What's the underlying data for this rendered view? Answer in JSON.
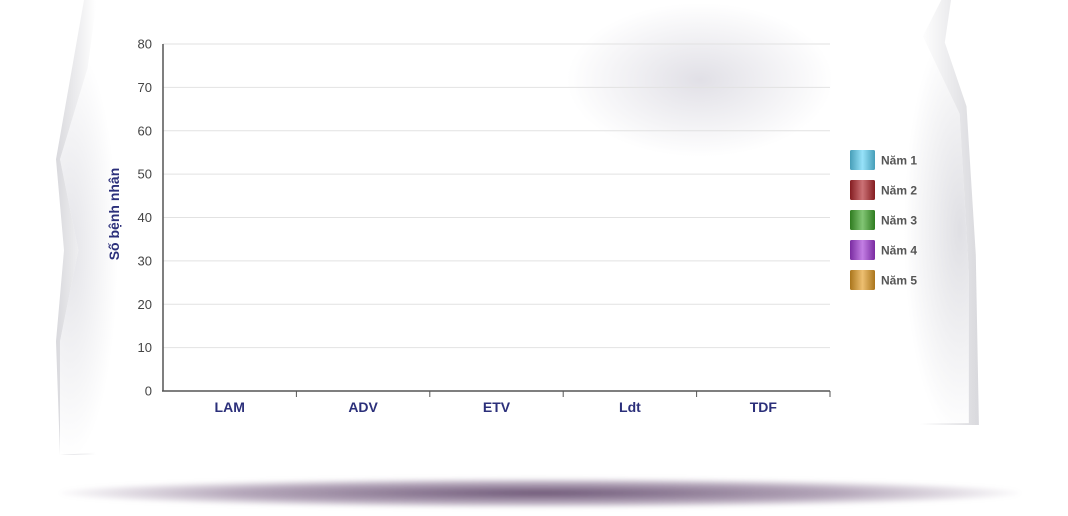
{
  "chart_data": {
    "type": "bar",
    "ylabel": "Số bệnh nhân",
    "xlabel": "",
    "ylim": [
      0,
      80
    ],
    "yticks": [
      "0",
      "10",
      "20",
      "30",
      "40",
      "50",
      "60",
      "70",
      "80"
    ],
    "categories": [
      "LAM",
      "ADV",
      "ETV",
      "Ldt",
      "TDF"
    ],
    "grid": true,
    "legend_position": "right",
    "series": [
      {
        "name": "Năm 1",
        "color": "#5fd3f5",
        "values": [
          null,
          null,
          null,
          null,
          null
        ]
      },
      {
        "name": "Năm 2",
        "color": "#b0262c",
        "values": [
          null,
          null,
          null,
          null,
          null
        ]
      },
      {
        "name": "Năm 3",
        "color": "#3fa52b",
        "values": [
          null,
          null,
          null,
          null,
          null
        ]
      },
      {
        "name": "Năm 4",
        "color": "#a23ad6",
        "values": [
          null,
          null,
          null,
          null,
          null
        ]
      },
      {
        "name": "Năm 5",
        "color": "#e39c25",
        "values": [
          null,
          null,
          null,
          null,
          null
        ]
      }
    ]
  }
}
